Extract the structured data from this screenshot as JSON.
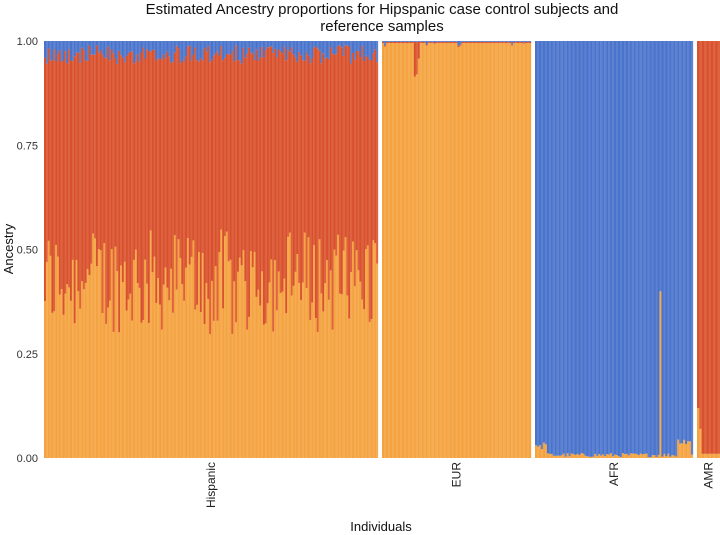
{
  "chart_data": {
    "type": "bar",
    "stacked": true,
    "title_lines": [
      "Estimated Ancestry proportions for Hipspanic case control subjects and",
      "reference samples"
    ],
    "xlabel": "Individuals",
    "ylabel": "Ancestry",
    "ylim": [
      0,
      1
    ],
    "yticks": [
      "0.00",
      "0.25",
      "0.50",
      "0.75",
      "1.00"
    ],
    "grid": false,
    "legend": "none",
    "colors": {
      "european": "#f4a340",
      "native_american": "#d9512c",
      "african": "#4a74cc"
    },
    "panels": [
      {
        "label": "Hispanic",
        "n_individuals": 180,
        "mean_european": 0.45,
        "mean_native_american": 0.52,
        "mean_african": 0.03
      },
      {
        "label": "EUR",
        "n_individuals": 75,
        "mean_european": 0.99,
        "mean_native_american": 0.005,
        "mean_african": 0.005
      },
      {
        "label": "AFR",
        "n_individuals": 80,
        "mean_european": 0.01,
        "mean_native_american": 0.0,
        "mean_african": 0.99
      },
      {
        "label": "AMR",
        "n_individuals": 10,
        "mean_european": 0.05,
        "mean_native_american": 0.95,
        "mean_african": 0.0
      }
    ]
  }
}
